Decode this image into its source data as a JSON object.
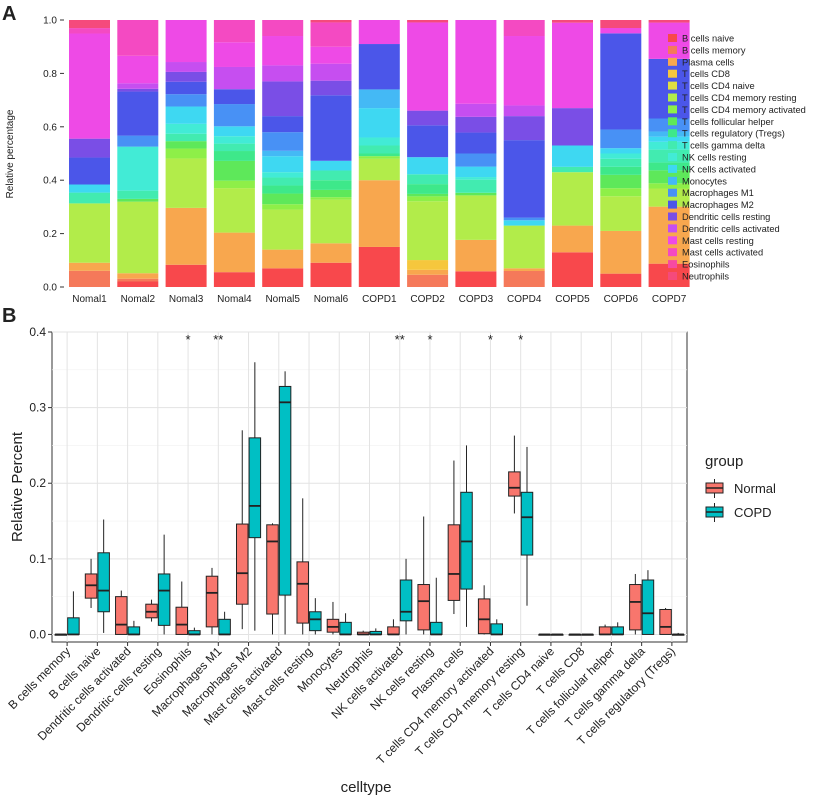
{
  "panel_a": {
    "label": "A",
    "chart_data": {
      "type": "bar",
      "stacked": true,
      "ylabel": "Relative percentage",
      "ylim": [
        0,
        1
      ],
      "yticks": [
        "0.0",
        "0.2",
        "0.4",
        "0.6",
        "0.8",
        "1.0"
      ],
      "categories": [
        "Nomal1",
        "Nomal2",
        "Nomal3",
        "Nomal4",
        "Nomal5",
        "Nomal6",
        "COPD1",
        "COPD2",
        "COPD3",
        "COPD4",
        "COPD5",
        "COPD6",
        "COPD7"
      ],
      "series": [
        {
          "name": "B cells naive",
          "color": "#f8484c",
          "values": [
            0.0,
            0.02,
            0.09,
            0.06,
            0.07,
            0.1,
            0.15,
            0.0,
            0.06,
            0.0,
            0.13,
            0.05,
            0.09
          ]
        },
        {
          "name": "B cells memory",
          "color": "#f5795a",
          "values": [
            0.06,
            0.01,
            0.0,
            0.0,
            0.0,
            0.0,
            0.0,
            0.05,
            0.0,
            0.06,
            0.0,
            0.0,
            0.0
          ]
        },
        {
          "name": "Plasma cells",
          "color": "#f8a74e",
          "values": [
            0.03,
            0.02,
            0.23,
            0.16,
            0.07,
            0.08,
            0.25,
            0.02,
            0.12,
            0.01,
            0.1,
            0.16,
            0.22
          ]
        },
        {
          "name": "T cells CD8",
          "color": "#f6c73d",
          "values": [
            0.0,
            0.0,
            0.0,
            0.0,
            0.0,
            0.0,
            0.0,
            0.04,
            0.0,
            0.0,
            0.0,
            0.0,
            0.0
          ]
        },
        {
          "name": "T cells CD4 naive",
          "color": "#e0df42",
          "values": [
            0.0,
            0.0,
            0.0,
            0.0,
            0.0,
            0.0,
            0.0,
            0.0,
            0.0,
            0.0,
            0.0,
            0.0,
            0.0
          ]
        },
        {
          "name": "T cells CD4 memory resting",
          "color": "#b2ec4a",
          "values": [
            0.22,
            0.26,
            0.2,
            0.18,
            0.15,
            0.18,
            0.08,
            0.24,
            0.17,
            0.16,
            0.2,
            0.13,
            0.07
          ]
        },
        {
          "name": "T cells CD4 memory activated",
          "color": "#8eef48",
          "values": [
            0.0,
            0.0,
            0.04,
            0.03,
            0.02,
            0.01,
            0.01,
            0.02,
            0.0,
            0.0,
            0.0,
            0.03,
            0.02
          ]
        },
        {
          "name": "T cells follicular helper",
          "color": "#5ee85a",
          "values": [
            0.0,
            0.01,
            0.03,
            0.08,
            0.04,
            0.03,
            0.0,
            0.01,
            0.01,
            0.0,
            0.0,
            0.05,
            0.05
          ]
        },
        {
          "name": "T cells regulatory (Tregs)",
          "color": "#3ee88a",
          "values": [
            0.0,
            0.0,
            0.0,
            0.04,
            0.03,
            0.04,
            0.01,
            0.04,
            0.0,
            0.0,
            0.0,
            0.03,
            0.03
          ]
        },
        {
          "name": "T cells gamma delta",
          "color": "#42ebb0",
          "values": [
            0.04,
            0.03,
            0.03,
            0.03,
            0.03,
            0.04,
            0.03,
            0.04,
            0.05,
            0.0,
            0.02,
            0.03,
            0.05
          ]
        },
        {
          "name": "NK cells resting",
          "color": "#42ebd6",
          "values": [
            0.0,
            0.16,
            0.04,
            0.03,
            0.02,
            0.0,
            0.03,
            0.0,
            0.01,
            0.0,
            0.0,
            0.02,
            0.03
          ]
        },
        {
          "name": "NK cells activated",
          "color": "#3ed8f2",
          "values": [
            0.03,
            0.0,
            0.07,
            0.04,
            0.06,
            0.04,
            0.11,
            0.07,
            0.04,
            0.02,
            0.08,
            0.02,
            0.02
          ]
        },
        {
          "name": "Monocytes",
          "color": "#44b9f5",
          "values": [
            0.0,
            0.0,
            0.0,
            0.0,
            0.02,
            0.0,
            0.07,
            0.0,
            0.0,
            0.0,
            0.0,
            0.0,
            0.02
          ]
        },
        {
          "name": "Macrophages M1",
          "color": "#4891f5",
          "values": [
            0.0,
            0.04,
            0.05,
            0.09,
            0.07,
            0.0,
            0.0,
            0.0,
            0.05,
            0.01,
            0.0,
            0.07,
            0.05
          ]
        },
        {
          "name": "Macrophages M2",
          "color": "#4b56e9",
          "values": [
            0.1,
            0.16,
            0.05,
            0.06,
            0.06,
            0.27,
            0.17,
            0.13,
            0.08,
            0.29,
            0.0,
            0.36,
            0.23
          ]
        },
        {
          "name": "Dendritic cells resting",
          "color": "#7a4ee6",
          "values": [
            0.07,
            0.01,
            0.04,
            0.0,
            0.13,
            0.06,
            0.0,
            0.06,
            0.06,
            0.09,
            0.14,
            0.0,
            0.0
          ]
        },
        {
          "name": "Dendritic cells activated",
          "color": "#c64ef0",
          "values": [
            0.0,
            0.02,
            0.04,
            0.09,
            0.06,
            0.07,
            0.0,
            0.0,
            0.05,
            0.04,
            0.0,
            0.0,
            0.0
          ]
        },
        {
          "name": "Mast cells resting",
          "color": "#ee4ae6",
          "values": [
            0.39,
            0.1,
            0.17,
            0.1,
            0.11,
            0.07,
            0.09,
            0.36,
            0.32,
            0.26,
            0.32,
            0.02,
            0.14
          ]
        },
        {
          "name": "Mast cells activated",
          "color": "#f44ac2",
          "values": [
            0.02,
            0.13,
            0.0,
            0.09,
            0.06,
            0.1,
            0.0,
            0.0,
            0.0,
            0.06,
            0.0,
            0.0,
            0.0
          ]
        },
        {
          "name": "Eosinophils",
          "color": "#f74aa2",
          "values": [
            0.0,
            0.0,
            0.0,
            0.0,
            0.0,
            0.0,
            0.0,
            0.0,
            0.0,
            0.0,
            0.0,
            0.0,
            0.0
          ]
        },
        {
          "name": "Neutrophils",
          "color": "#f54a7c",
          "values": [
            0.03,
            0.0,
            0.0,
            0.0,
            0.0,
            0.01,
            0.0,
            0.01,
            0.0,
            0.0,
            0.01,
            0.03,
            0.01
          ]
        }
      ]
    }
  },
  "panel_b": {
    "label": "B",
    "chart_data": {
      "type": "box",
      "xlabel": "celltype",
      "ylabel": "Relative Percent",
      "ylim": [
        -0.01,
        0.4
      ],
      "yticks": [
        "0.0",
        "0.1",
        "0.2",
        "0.3",
        "0.4"
      ],
      "legend": {
        "title": "group",
        "position": "right"
      },
      "groups": [
        {
          "name": "Normal",
          "color": "#f8766d"
        },
        {
          "name": "COPD",
          "color": "#00bfc4"
        }
      ],
      "categories": [
        {
          "label": "B cells memory",
          "sig": "",
          "normal": [
            0,
            0,
            0,
            0,
            0
          ],
          "copd": [
            0,
            0,
            0,
            0.022,
            0.057
          ]
        },
        {
          "label": "B cells naive",
          "sig": "",
          "normal": [
            0.035,
            0.048,
            0.065,
            0.08,
            0.1
          ],
          "copd": [
            0.002,
            0.03,
            0.058,
            0.108,
            0.152
          ]
        },
        {
          "label": "Dendritic cells activated",
          "sig": "",
          "normal": [
            0,
            0,
            0.013,
            0.05,
            0.058
          ],
          "copd": [
            0,
            0,
            0,
            0.01,
            0.018
          ]
        },
        {
          "label": "Dendritic cells resting",
          "sig": "",
          "normal": [
            0.017,
            0.022,
            0.03,
            0.04,
            0.046
          ],
          "copd": [
            0,
            0.012,
            0.058,
            0.08,
            0.132
          ]
        },
        {
          "label": "Eosinophils",
          "sig": "*",
          "normal": [
            0,
            0,
            0.013,
            0.036,
            0.07
          ],
          "copd": [
            0,
            0,
            0,
            0.005,
            0.009
          ]
        },
        {
          "label": "Macrophages M1",
          "sig": "**",
          "normal": [
            0,
            0.01,
            0.055,
            0.077,
            0.088
          ],
          "copd": [
            0,
            0,
            0,
            0.02,
            0.03
          ]
        },
        {
          "label": "Macrophages M2",
          "sig": "",
          "normal": [
            0.007,
            0.04,
            0.081,
            0.146,
            0.27
          ],
          "copd": [
            0.005,
            0.128,
            0.17,
            0.26,
            0.36
          ]
        },
        {
          "label": "Mast cells activated",
          "sig": "",
          "normal": [
            0,
            0.027,
            0.123,
            0.145,
            0.147
          ],
          "copd": [
            0,
            0.052,
            0.307,
            0.328,
            0.348
          ]
        },
        {
          "label": "Mast cells resting",
          "sig": "",
          "normal": [
            0,
            0.015,
            0.067,
            0.096,
            0.18
          ],
          "copd": [
            0,
            0.005,
            0.02,
            0.03,
            0.048
          ]
        },
        {
          "label": "Monocytes",
          "sig": "",
          "normal": [
            0,
            0.003,
            0.01,
            0.02,
            0.043
          ],
          "copd": [
            0,
            0,
            0,
            0.016,
            0.028
          ]
        },
        {
          "label": "Neutrophils",
          "sig": "",
          "normal": [
            0,
            0,
            0,
            0.003,
            0.005
          ],
          "copd": [
            0,
            0,
            0,
            0.004,
            0.008
          ]
        },
        {
          "label": "NK cells activated",
          "sig": "**",
          "normal": [
            0,
            0,
            0,
            0.01,
            0.02
          ],
          "copd": [
            0,
            0.018,
            0.03,
            0.072,
            0.1
          ]
        },
        {
          "label": "NK cells resting",
          "sig": "*",
          "normal": [
            0,
            0.006,
            0.044,
            0.066,
            0.156
          ],
          "copd": [
            0,
            0,
            0,
            0.016,
            0.075
          ]
        },
        {
          "label": "Plasma cells",
          "sig": "",
          "normal": [
            0.027,
            0.045,
            0.08,
            0.145,
            0.23
          ],
          "copd": [
            0.01,
            0.06,
            0.123,
            0.188,
            0.25
          ]
        },
        {
          "label": "T cells CD4 memory activated",
          "sig": "*",
          "normal": [
            0,
            0.001,
            0.02,
            0.047,
            0.065
          ],
          "copd": [
            0,
            0,
            0,
            0.014,
            0.02
          ]
        },
        {
          "label": "T cells CD4 memory resting",
          "sig": "*",
          "normal": [
            0.16,
            0.183,
            0.194,
            0.215,
            0.263
          ],
          "copd": [
            0.038,
            0.105,
            0.155,
            0.188,
            0.248
          ]
        },
        {
          "label": "T cells CD4 naive",
          "sig": "",
          "normal": [
            0,
            0,
            0,
            0,
            0
          ],
          "copd": [
            0,
            0,
            0,
            0,
            0
          ]
        },
        {
          "label": "T cells CD8",
          "sig": "",
          "normal": [
            0,
            0,
            0,
            0,
            0
          ],
          "copd": [
            0,
            0,
            0,
            0,
            0
          ]
        },
        {
          "label": "T cells follicular helper",
          "sig": "",
          "normal": [
            0,
            0,
            0,
            0.01,
            0.013
          ],
          "copd": [
            0,
            0,
            0,
            0.01,
            0.016
          ]
        },
        {
          "label": "T cells gamma delta",
          "sig": "",
          "normal": [
            0,
            0.006,
            0.043,
            0.066,
            0.08
          ],
          "copd": [
            0,
            0,
            0.028,
            0.072,
            0.085
          ]
        },
        {
          "label": "T cells regulatory (Tregs)",
          "sig": "",
          "normal": [
            0,
            0,
            0.01,
            0.033,
            0.035
          ],
          "copd": [
            0,
            0,
            0,
            0,
            0.002
          ]
        }
      ]
    }
  }
}
